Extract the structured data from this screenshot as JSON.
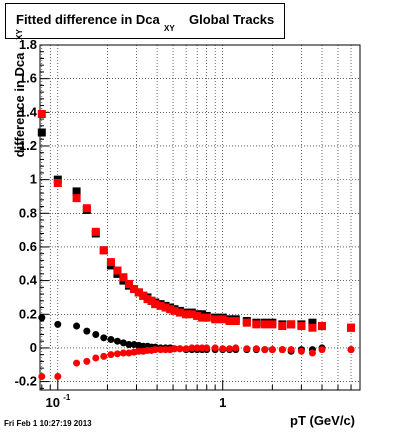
{
  "title": {
    "main": "Fitted difference in Dca",
    "sub": "XY",
    "suffix": "Global Tracks"
  },
  "timestamp": "Fri Feb  1 10:27:19 2013",
  "chart_data": {
    "type": "scatter",
    "xlabel": "pT (GeV/c)",
    "ylabel": "difference in Dca",
    "ylabel_sub": "XY",
    "x_scale": "log",
    "xlim": [
      0.078,
      6.8
    ],
    "ylim": [
      -0.25,
      1.8
    ],
    "grid": true,
    "y_ticks": [
      "-0.2",
      "0",
      "0.2",
      "0.4",
      "0.6",
      "0.8",
      "1",
      "1.2",
      "1.4",
      "1.6",
      "1.8"
    ],
    "x_ticks": [
      {
        "value": 0.1,
        "label": "10",
        "sup": "-1"
      },
      {
        "value": 1,
        "label": "1",
        "sup": ""
      }
    ],
    "series": [
      {
        "marker": "square",
        "color": "#000000",
        "x": [
          0.08,
          0.1,
          0.13,
          0.15,
          0.17,
          0.19,
          0.21,
          0.23,
          0.25,
          0.27,
          0.29,
          0.31,
          0.33,
          0.35,
          0.37,
          0.39,
          0.42,
          0.45,
          0.48,
          0.51,
          0.55,
          0.6,
          0.65,
          0.7,
          0.75,
          0.8,
          0.9,
          1.0,
          1.1,
          1.2,
          1.4,
          1.6,
          1.8,
          2.0,
          2.3,
          2.6,
          3.0,
          3.5,
          4.0,
          6.0
        ],
        "y": [
          1.28,
          1.0,
          0.93,
          0.82,
          0.68,
          0.58,
          0.49,
          0.44,
          0.4,
          0.37,
          0.35,
          0.33,
          0.31,
          0.3,
          0.28,
          0.27,
          0.26,
          0.25,
          0.24,
          0.23,
          0.22,
          0.21,
          0.21,
          0.2,
          0.2,
          0.19,
          0.18,
          0.18,
          0.17,
          0.17,
          0.16,
          0.15,
          0.15,
          0.15,
          0.14,
          0.14,
          0.14,
          0.15,
          0.13,
          0.12
        ]
      },
      {
        "marker": "square",
        "color": "#ff0000",
        "x": [
          0.08,
          0.1,
          0.13,
          0.15,
          0.17,
          0.19,
          0.21,
          0.23,
          0.25,
          0.27,
          0.29,
          0.31,
          0.33,
          0.35,
          0.37,
          0.39,
          0.42,
          0.45,
          0.48,
          0.51,
          0.55,
          0.6,
          0.65,
          0.7,
          0.75,
          0.8,
          0.9,
          1.0,
          1.1,
          1.2,
          1.4,
          1.6,
          1.8,
          2.0,
          2.3,
          2.6,
          3.0,
          3.5,
          4.0,
          6.0
        ],
        "y": [
          1.39,
          0.98,
          0.89,
          0.83,
          0.69,
          0.58,
          0.51,
          0.46,
          0.42,
          0.38,
          0.35,
          0.33,
          0.31,
          0.29,
          0.28,
          0.26,
          0.25,
          0.24,
          0.23,
          0.22,
          0.21,
          0.2,
          0.2,
          0.19,
          0.18,
          0.18,
          0.17,
          0.17,
          0.16,
          0.16,
          0.15,
          0.14,
          0.14,
          0.14,
          0.13,
          0.14,
          0.13,
          0.12,
          0.13,
          0.12
        ]
      },
      {
        "marker": "circle",
        "color": "#000000",
        "x": [
          0.08,
          0.1,
          0.13,
          0.15,
          0.17,
          0.19,
          0.21,
          0.23,
          0.25,
          0.27,
          0.29,
          0.31,
          0.33,
          0.35,
          0.37,
          0.39,
          0.42,
          0.45,
          0.48,
          0.51,
          0.55,
          0.6,
          0.65,
          0.7,
          0.75,
          0.8,
          0.9,
          1.0,
          1.1,
          1.2,
          1.4,
          1.6,
          1.8,
          2.0,
          2.3,
          2.6,
          3.0,
          3.5,
          4.0,
          6.0
        ],
        "y": [
          0.18,
          0.14,
          0.13,
          0.1,
          0.08,
          0.06,
          0.05,
          0.04,
          0.03,
          0.02,
          0.02,
          0.015,
          0.01,
          0.01,
          0.005,
          0.005,
          0.0,
          0.0,
          0.0,
          -0.005,
          -0.005,
          -0.01,
          -0.01,
          -0.01,
          -0.01,
          -0.01,
          -0.01,
          -0.01,
          -0.01,
          -0.01,
          -0.01,
          -0.01,
          -0.01,
          -0.01,
          -0.01,
          -0.02,
          -0.01,
          -0.01,
          0.0,
          -0.01
        ]
      },
      {
        "marker": "circle",
        "color": "#ff0000",
        "x": [
          0.08,
          0.1,
          0.13,
          0.15,
          0.17,
          0.19,
          0.21,
          0.23,
          0.25,
          0.27,
          0.29,
          0.31,
          0.33,
          0.35,
          0.37,
          0.39,
          0.42,
          0.45,
          0.48,
          0.51,
          0.55,
          0.6,
          0.65,
          0.7,
          0.75,
          0.8,
          0.9,
          1.0,
          1.1,
          1.2,
          1.4,
          1.6,
          1.8,
          2.0,
          2.3,
          2.6,
          3.0,
          3.5,
          4.0,
          6.0
        ],
        "y": [
          -0.17,
          -0.17,
          -0.09,
          -0.08,
          -0.06,
          -0.05,
          -0.04,
          -0.035,
          -0.03,
          -0.03,
          -0.025,
          -0.02,
          -0.02,
          -0.015,
          -0.015,
          -0.01,
          -0.01,
          -0.01,
          -0.01,
          -0.005,
          -0.005,
          -0.005,
          0.0,
          0.0,
          0.0,
          0.0,
          0.0,
          -0.005,
          -0.005,
          0.0,
          -0.005,
          -0.005,
          -0.01,
          -0.01,
          -0.01,
          -0.01,
          -0.02,
          -0.03,
          -0.01,
          -0.01
        ]
      }
    ]
  }
}
